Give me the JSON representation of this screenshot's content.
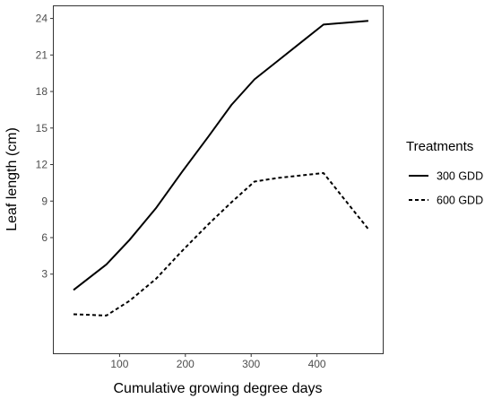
{
  "chart_data": {
    "type": "line",
    "xlabel": "Cumulative growing degree days",
    "ylabel": "Leaf length (cm)",
    "xlim": [
      0,
      500
    ],
    "ylim": [
      -3.5,
      25
    ],
    "xticks": [
      100,
      200,
      300,
      400
    ],
    "yticks": [
      3,
      6,
      9,
      12,
      15,
      18,
      21,
      24
    ],
    "grid": false,
    "legend": {
      "title": "Treatments",
      "position": "right"
    },
    "series": [
      {
        "name": "300 GDD",
        "style": "solid",
        "color": "#000000",
        "x": [
          30,
          80,
          115,
          155,
          195,
          235,
          270,
          305,
          340,
          375,
          410,
          478
        ],
        "y": [
          1.7,
          3.8,
          5.8,
          8.4,
          11.4,
          14.3,
          16.9,
          19.0,
          20.5,
          22.0,
          23.5,
          23.8
        ]
      },
      {
        "name": "600 GDD",
        "style": "dashed",
        "color": "#000000",
        "x": [
          30,
          80,
          115,
          155,
          195,
          235,
          270,
          305,
          340,
          375,
          410,
          478
        ],
        "y": [
          -0.3,
          -0.4,
          0.8,
          2.6,
          4.9,
          7.1,
          8.9,
          10.6,
          10.9,
          11.1,
          11.3,
          6.7
        ]
      }
    ]
  }
}
